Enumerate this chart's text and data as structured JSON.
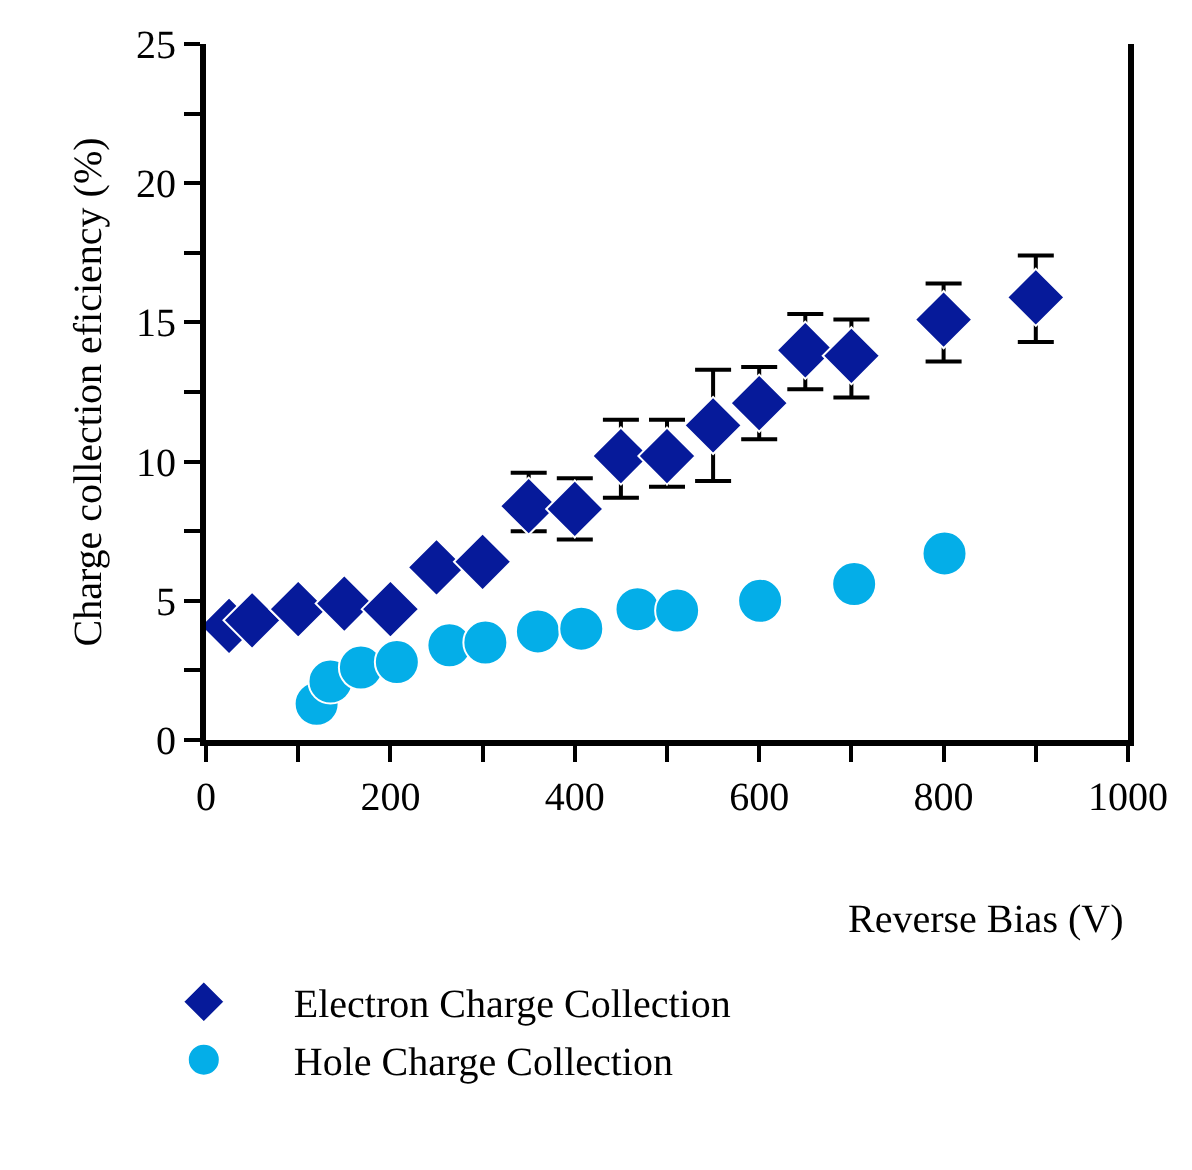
{
  "chart_data": {
    "type": "scatter",
    "xlabel": "Reverse Bias (V)",
    "ylabel": "Charge collection eficiency (%)",
    "series": [
      {
        "name": "Electron Charge Collection",
        "color": "#061a9a",
        "marker": "diamond",
        "x": [
          25,
          50,
          100,
          150,
          200,
          250,
          300,
          350,
          400,
          450,
          500,
          550,
          600,
          650,
          700,
          800,
          900
        ],
        "values": [
          4.1,
          4.3,
          4.7,
          4.9,
          4.7,
          6.2,
          6.4,
          8.4,
          8.3,
          10.2,
          10.2,
          11.3,
          12.1,
          14.0,
          13.8,
          15.1,
          15.9
        ],
        "errors": [
          null,
          null,
          null,
          null,
          null,
          null,
          null,
          [
            7.5,
            9.6
          ],
          [
            7.2,
            9.4
          ],
          [
            8.7,
            11.5
          ],
          [
            9.1,
            11.5
          ],
          [
            9.3,
            13.3
          ],
          [
            10.8,
            13.4
          ],
          [
            12.6,
            15.3
          ],
          [
            12.3,
            15.1
          ],
          [
            13.6,
            16.4
          ],
          [
            14.3,
            17.4
          ]
        ]
      },
      {
        "name": "Hole Charge Collection",
        "color": "#04aee8",
        "marker": "circle",
        "x": [
          120,
          135,
          168,
          207,
          264,
          303,
          360,
          407,
          468,
          511,
          601,
          703,
          801
        ],
        "values": [
          1.3,
          2.1,
          2.6,
          2.8,
          3.4,
          3.5,
          3.9,
          4.0,
          4.7,
          4.65,
          5.0,
          5.6,
          6.7
        ]
      }
    ],
    "xlim": [
      0,
      1000
    ],
    "xticks": [
      0,
      {
        "value": 100,
        "label": null
      },
      200,
      {
        "value": 300,
        "label": null
      },
      400,
      {
        "value": 500,
        "label": null
      },
      600,
      {
        "value": 700,
        "label": null
      },
      800,
      {
        "value": 900,
        "label": null
      },
      1000
    ],
    "ylim": [
      0,
      25
    ],
    "yticks": [
      0,
      {
        "value": 2.5,
        "label": null
      },
      5,
      {
        "value": 7.5,
        "label": null
      },
      10,
      {
        "value": 12.5,
        "label": null
      },
      15,
      {
        "value": 17.5,
        "label": null
      },
      20,
      {
        "value": 22.5,
        "label": null
      },
      25
    ],
    "legend": "bottom"
  }
}
